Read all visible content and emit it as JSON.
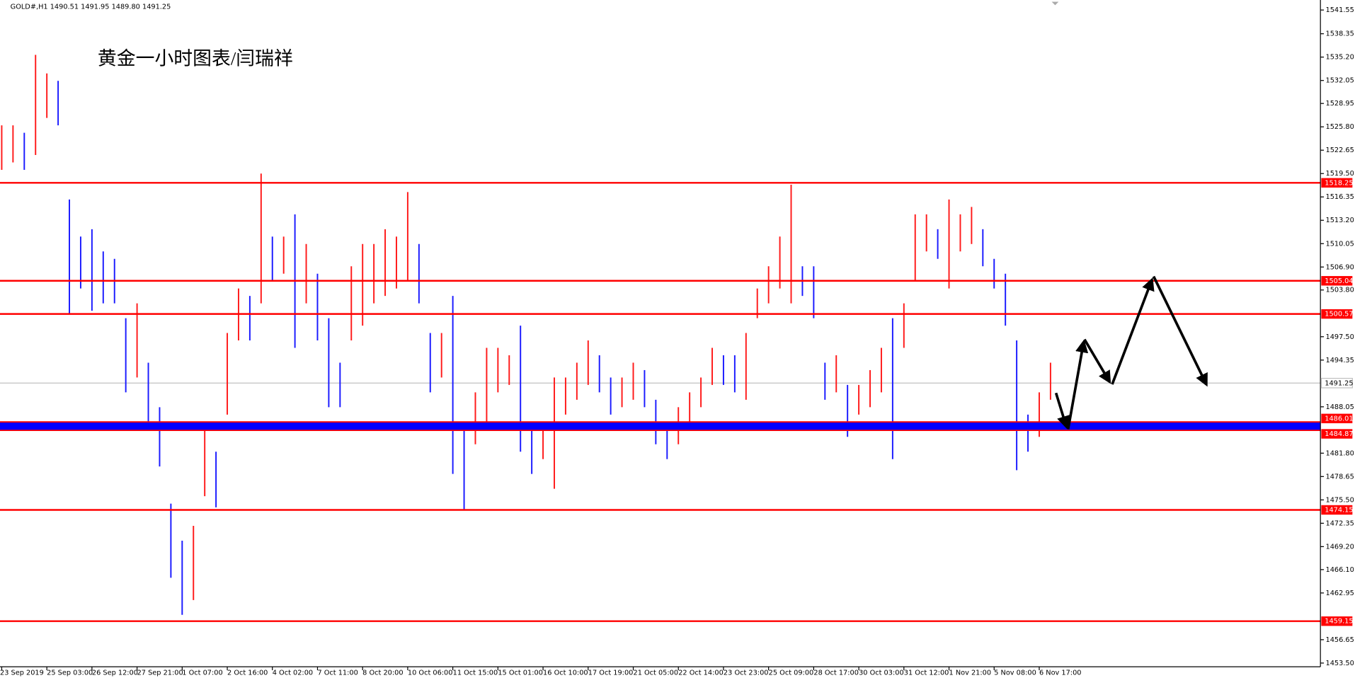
{
  "chart_data": {
    "type": "ohlc",
    "header": "GOLD#,H1  1490.51 1491.95 1489.80 1491.25",
    "annotation": "黄金一小时图表/闫瑞祥",
    "time_labels": [
      "23 Sep 2019",
      "25 Sep 03:00",
      "26 Sep 12:00",
      "27 Sep 21:00",
      "1 Oct 07:00",
      "2 Oct 16:00",
      "4 Oct 02:00",
      "7 Oct 11:00",
      "8 Oct 20:00",
      "10 Oct 06:00",
      "11 Oct 15:00",
      "15 Oct 01:00",
      "16 Oct 10:00",
      "17 Oct 19:00",
      "21 Oct 05:00",
      "22 Oct 14:00",
      "23 Oct 23:00",
      "25 Oct 09:00",
      "28 Oct 17:00",
      "30 Oct 03:00",
      "31 Oct 12:00",
      "1 Nov 21:00",
      "5 Nov 08:00",
      "6 Nov 17:00"
    ],
    "high": [
      1526,
      1526,
      1525,
      1535.5,
      1533,
      1532,
      1516,
      1511,
      1512,
      1509,
      1508,
      1500,
      1502,
      1494,
      1488,
      1475,
      1470,
      1472,
      1485,
      1482,
      1498,
      1504,
      1503,
      1519.5,
      1511,
      1511,
      1514,
      1510,
      1506,
      1500,
      1494,
      1507,
      1510,
      1510,
      1512,
      1511,
      1517,
      1510,
      1498,
      1498,
      1503,
      1486,
      1490,
      1496,
      1496,
      1495,
      1499,
      1485,
      1486,
      1492,
      1492,
      1494,
      1497,
      1495,
      1492,
      1492,
      1494,
      1493,
      1489,
      1485,
      1488,
      1490,
      1492,
      1496,
      1495,
      1495,
      1498,
      1504,
      1507,
      1511,
      1518,
      1507,
      1507,
      1494,
      1495,
      1491,
      1491,
      1493,
      1496,
      1500,
      1502,
      1514,
      1514,
      1512,
      1516,
      1514,
      1515,
      1512,
      1508,
      1506,
      1497,
      1487,
      1490,
      1494
    ],
    "low": [
      1520,
      1521,
      1520,
      1522,
      1527,
      1526,
      1500.5,
      1504,
      1501,
      1502,
      1502,
      1490,
      1492,
      1486,
      1480,
      1465,
      1460,
      1462,
      1476,
      1474.5,
      1487,
      1497,
      1497,
      1502,
      1505,
      1506,
      1496,
      1502,
      1497,
      1488,
      1488,
      1497,
      1499,
      1502,
      1503,
      1504,
      1505,
      1502,
      1490,
      1492,
      1479,
      1474.15,
      1483,
      1486,
      1490,
      1491,
      1482,
      1479,
      1481,
      1477,
      1487,
      1489,
      1491,
      1490,
      1487,
      1488,
      1489,
      1488,
      1483,
      1481,
      1483,
      1486,
      1488,
      1491,
      1491,
      1490,
      1489,
      1500,
      1502,
      1504,
      1502,
      1503,
      1500,
      1489,
      1490,
      1484,
      1487,
      1488,
      1490,
      1481,
      1496,
      1505,
      1509,
      1508,
      1504,
      1509,
      1510,
      1507,
      1504,
      1499,
      1479.5,
      1482,
      1484,
      1489
    ],
    "colors": {
      "up": "#ff1a1a",
      "down": "#1a1aff"
    },
    "ylim": [
      1453.0,
      1542.9
    ],
    "yticks": [
      1541.55,
      1538.35,
      {
        "value": 1535.2,
        "label": "1535.20"
      },
      1532.05,
      1528.95,
      {
        "value": 1525.8,
        "label": "1525.80"
      },
      1522.65,
      {
        "value": 1519.5,
        "label": "1519.50"
      },
      1516.35,
      {
        "value": 1513.2,
        "label": "1513.20"
      },
      1510.05,
      {
        "value": 1506.9,
        "label": "1506.90"
      },
      {
        "value": 1503.8,
        "label": "1503.80"
      },
      {
        "value": 1497.5,
        "label": "1497.50"
      },
      1494.35,
      1488.05,
      {
        "value": 1481.8,
        "label": "1481.80"
      },
      1478.65,
      {
        "value": 1475.5,
        "label": "1475.50"
      },
      1472.35,
      {
        "value": 1469.2,
        "label": "1469.20"
      },
      {
        "value": 1466.1,
        "label": "1466.10"
      },
      1462.95,
      1456.65,
      {
        "value": 1453.5,
        "label": "1453.50"
      }
    ],
    "levels": [
      1518.25,
      1505.04,
      1500.57,
      1474.15,
      1459.15
    ],
    "level_color": "#ff0000",
    "zone": [
      1484.87,
      1486.01
    ],
    "zone_color": "#0000ff",
    "last_price": 1491.25
  }
}
